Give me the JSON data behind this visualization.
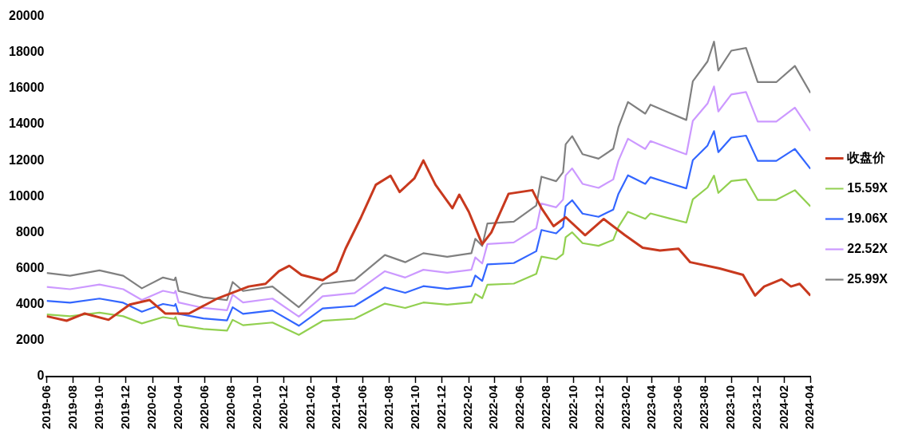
{
  "chart_data": {
    "type": "line",
    "xlim": [
      "2019-06",
      "2024-04"
    ],
    "ylim": [
      0,
      20000
    ],
    "xticks": [
      "2019-06",
      "2019-08",
      "2019-10",
      "2019-12",
      "2020-02",
      "2020-04",
      "2020-06",
      "2020-08",
      "2020-10",
      "2020-12",
      "2021-02",
      "2021-04",
      "2021-06",
      "2021-08",
      "2021-10",
      "2021-12",
      "2022-02",
      "2022-04",
      "2022-06",
      "2022-08",
      "2022-10",
      "2022-12",
      "2023-02",
      "2023-04",
      "2023-06",
      "2023-08",
      "2023-10",
      "2023-12",
      "2024-02",
      "2024-04"
    ],
    "yticks": [
      0,
      2000,
      4000,
      6000,
      8000,
      10000,
      12000,
      14000,
      16000,
      18000,
      20000
    ],
    "grid": false,
    "legend": "right",
    "marker": "none",
    "line_style": "solid",
    "series": [
      {
        "name": "收盘价",
        "color": "#c8391e",
        "x": [
          "2019-06-01",
          "2019-07-17",
          "2019-08-28",
          "2019-10-22",
          "2019-12-10",
          "2020-01-25",
          "2020-03-01",
          "2020-04-25",
          "2020-07-01",
          "2020-09-10",
          "2020-10-19",
          "2020-11-19",
          "2020-12-13",
          "2021-01-10",
          "2021-02-28",
          "2021-04-01",
          "2021-04-22",
          "2021-05-28",
          "2021-07-01",
          "2021-08-04",
          "2021-08-25",
          "2021-09-28",
          "2021-10-19",
          "2021-11-16",
          "2021-12-25",
          "2022-01-10",
          "2022-02-01",
          "2022-03-04",
          "2022-03-25",
          "2022-05-04",
          "2022-06-28",
          "2022-07-19",
          "2022-08-16",
          "2022-09-13",
          "2022-10-28",
          "2022-12-10",
          "2023-01-28",
          "2023-03-10",
          "2023-04-19",
          "2023-06-01",
          "2023-06-28",
          "2023-09-04",
          "2023-10-28",
          "2023-11-25",
          "2023-12-16",
          "2024-01-25",
          "2024-02-16",
          "2024-03-07",
          "2024-04-01"
        ],
        "values": [
          3350,
          3100,
          3500,
          3150,
          4000,
          4250,
          3500,
          3500,
          4350,
          5000,
          5150,
          5850,
          6150,
          5650,
          5350,
          5850,
          7100,
          8850,
          10650,
          11150,
          10250,
          11000,
          12000,
          10650,
          9350,
          10100,
          9150,
          7350,
          8000,
          10150,
          10350,
          9350,
          8350,
          8850,
          7850,
          8750,
          7850,
          7150,
          7000,
          7100,
          6350,
          6000,
          5650,
          4500,
          5000,
          5400,
          5000,
          5150,
          4500
        ]
      },
      {
        "name": "15.59X",
        "color": "#92d050",
        "x": [
          "2019-06-01",
          "2019-07-25",
          "2019-10-01",
          "2019-11-25",
          "2020-01-07",
          "2020-02-25",
          "2020-03-22",
          "2020-03-25",
          "2020-04-01",
          "2020-05-28",
          "2020-07-22",
          "2020-08-04",
          "2020-08-28",
          "2020-11-04",
          "2021-01-04",
          "2021-02-28",
          "2021-05-13",
          "2021-07-22",
          "2021-09-07",
          "2021-10-19",
          "2021-12-13",
          "2022-02-07",
          "2022-02-16",
          "2022-03-04",
          "2022-03-16",
          "2022-05-16",
          "2022-07-07",
          "2022-07-19",
          "2022-08-22",
          "2022-09-07",
          "2022-09-13",
          "2022-09-28",
          "2022-10-22",
          "2022-11-28",
          "2023-01-01",
          "2023-01-13",
          "2023-02-04",
          "2023-03-16",
          "2023-03-28",
          "2023-05-10",
          "2023-06-19",
          "2023-07-04",
          "2023-08-07",
          "2023-08-22",
          "2023-09-01",
          "2023-10-01",
          "2023-11-04",
          "2023-12-01",
          "2024-01-13",
          "2024-02-25",
          "2024-04-01"
        ],
        "values": [
          3450,
          3350,
          3550,
          3350,
          2950,
          3300,
          3200,
          3300,
          2850,
          2640,
          2550,
          3150,
          2850,
          3000,
          2310,
          3090,
          3210,
          4050,
          3810,
          4110,
          3990,
          4110,
          4590,
          4350,
          5100,
          5160,
          5700,
          6660,
          6510,
          6810,
          7740,
          8010,
          7410,
          7260,
          7590,
          8310,
          9150,
          8760,
          9060,
          8790,
          8550,
          9840,
          10500,
          11160,
          10200,
          10860,
          10950,
          9810,
          9810,
          10350,
          9450
        ]
      },
      {
        "name": "19.06X",
        "color": "#3366ff",
        "x": [
          "2019-06-01",
          "2019-07-25",
          "2019-10-01",
          "2019-11-25",
          "2020-01-07",
          "2020-02-25",
          "2020-03-22",
          "2020-03-25",
          "2020-04-01",
          "2020-05-28",
          "2020-07-22",
          "2020-08-04",
          "2020-08-28",
          "2020-11-04",
          "2021-01-04",
          "2021-02-28",
          "2021-05-13",
          "2021-07-22",
          "2021-09-07",
          "2021-10-19",
          "2021-12-13",
          "2022-02-07",
          "2022-02-16",
          "2022-03-04",
          "2022-03-16",
          "2022-05-16",
          "2022-07-07",
          "2022-07-19",
          "2022-08-22",
          "2022-09-07",
          "2022-09-13",
          "2022-09-28",
          "2022-10-22",
          "2022-11-28",
          "2023-01-01",
          "2023-01-13",
          "2023-02-04",
          "2023-03-16",
          "2023-03-28",
          "2023-05-10",
          "2023-06-19",
          "2023-07-04",
          "2023-08-07",
          "2023-08-22",
          "2023-09-01",
          "2023-10-01",
          "2023-11-04",
          "2023-12-01",
          "2024-01-13",
          "2024-02-25",
          "2024-04-01"
        ],
        "values": [
          4200,
          4100,
          4330,
          4100,
          3600,
          4030,
          3920,
          4030,
          3480,
          3230,
          3120,
          3850,
          3480,
          3670,
          2820,
          3780,
          3920,
          4950,
          4650,
          5020,
          4870,
          5020,
          5610,
          5310,
          6230,
          6300,
          6960,
          8140,
          7950,
          8320,
          9460,
          9790,
          9050,
          8870,
          9270,
          10150,
          11180,
          10700,
          11070,
          10740,
          10450,
          12020,
          12830,
          13630,
          12460,
          13270,
          13380,
          11980,
          11980,
          12640,
          11540
        ]
      },
      {
        "name": "22.52X",
        "color": "#cc99ff",
        "x": [
          "2019-06-01",
          "2019-07-25",
          "2019-10-01",
          "2019-11-25",
          "2020-01-07",
          "2020-02-25",
          "2020-03-22",
          "2020-03-25",
          "2020-04-01",
          "2020-05-28",
          "2020-07-22",
          "2020-08-04",
          "2020-08-28",
          "2020-11-04",
          "2021-01-04",
          "2021-02-28",
          "2021-05-13",
          "2021-07-22",
          "2021-09-07",
          "2021-10-19",
          "2021-12-13",
          "2022-02-07",
          "2022-02-16",
          "2022-03-04",
          "2022-03-16",
          "2022-05-16",
          "2022-07-07",
          "2022-07-19",
          "2022-08-22",
          "2022-09-07",
          "2022-09-13",
          "2022-09-28",
          "2022-10-22",
          "2022-11-28",
          "2023-01-01",
          "2023-01-13",
          "2023-02-04",
          "2023-03-16",
          "2023-03-28",
          "2023-05-10",
          "2023-06-19",
          "2023-07-04",
          "2023-08-07",
          "2023-08-22",
          "2023-09-01",
          "2023-10-01",
          "2023-11-04",
          "2023-12-01",
          "2024-01-13",
          "2024-02-25",
          "2024-04-01"
        ],
        "values": [
          4980,
          4850,
          5110,
          4850,
          4250,
          4760,
          4630,
          4760,
          4110,
          3810,
          3680,
          4550,
          4110,
          4330,
          3330,
          4460,
          4630,
          5850,
          5500,
          5930,
          5760,
          5930,
          6620,
          6280,
          7360,
          7450,
          8230,
          9610,
          9400,
          9830,
          11170,
          11560,
          10700,
          10480,
          10950,
          11990,
          13210,
          12640,
          13080,
          12690,
          12340,
          14200,
          15160,
          16110,
          14720,
          15670,
          15800,
          14160,
          14160,
          14940,
          13640
        ]
      },
      {
        "name": "25.99X",
        "color": "#808080",
        "x": [
          "2019-06-01",
          "2019-07-25",
          "2019-10-01",
          "2019-11-25",
          "2020-01-07",
          "2020-02-25",
          "2020-03-22",
          "2020-03-25",
          "2020-04-01",
          "2020-05-28",
          "2020-07-22",
          "2020-08-04",
          "2020-08-28",
          "2020-11-04",
          "2021-01-04",
          "2021-02-28",
          "2021-05-13",
          "2021-07-22",
          "2021-09-07",
          "2021-10-19",
          "2021-12-13",
          "2022-02-07",
          "2022-02-16",
          "2022-03-04",
          "2022-03-16",
          "2022-05-16",
          "2022-07-07",
          "2022-07-19",
          "2022-08-22",
          "2022-09-07",
          "2022-09-13",
          "2022-09-28",
          "2022-10-22",
          "2022-11-28",
          "2023-01-01",
          "2023-01-13",
          "2023-02-04",
          "2023-03-16",
          "2023-03-28",
          "2023-05-10",
          "2023-06-19",
          "2023-07-04",
          "2023-08-07",
          "2023-08-22",
          "2023-09-01",
          "2023-10-01",
          "2023-11-04",
          "2023-12-01",
          "2024-01-13",
          "2024-02-25",
          "2024-04-01"
        ],
        "values": [
          5750,
          5600,
          5900,
          5600,
          4900,
          5500,
          5350,
          5500,
          4750,
          4400,
          4250,
          5250,
          4750,
          5000,
          3850,
          5150,
          5350,
          6750,
          6350,
          6850,
          6650,
          6850,
          7650,
          7250,
          8500,
          8600,
          9500,
          11100,
          10850,
          11350,
          12900,
          13350,
          12350,
          12100,
          12650,
          13850,
          15250,
          14600,
          15100,
          14650,
          14250,
          16400,
          17500,
          18600,
          17000,
          18100,
          18250,
          16350,
          16350,
          17250,
          15750
        ]
      }
    ]
  }
}
